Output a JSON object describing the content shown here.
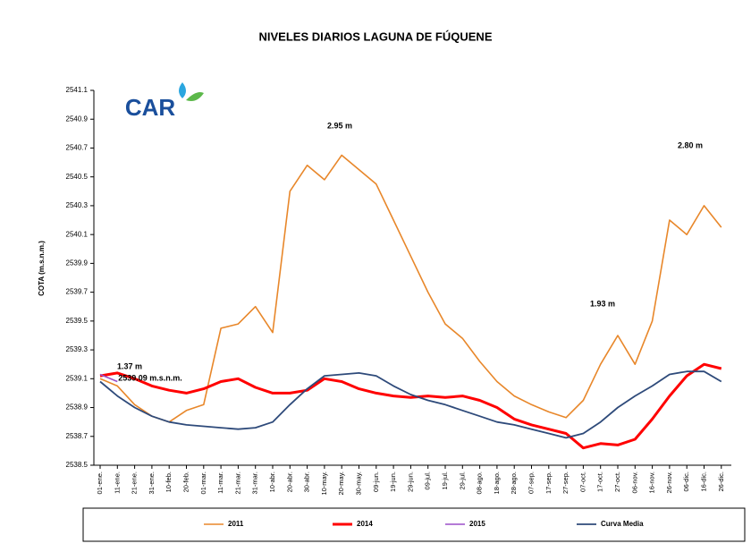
{
  "chart_data": {
    "type": "line",
    "title": "NIVELES DIARIOS LAGUNA DE FÚQUENE",
    "ylabel": "COTA (m.s.n.m.)",
    "logo": "CAR",
    "annotations": [
      "2.95 m",
      "2.80 m",
      "1.93 m",
      "1.37 m",
      "2539.09 m.s.n.m."
    ],
    "categories": [
      "01-ene.",
      "11-ene.",
      "21-ene.",
      "31-ene.",
      "10-feb.",
      "20-feb.",
      "01-mar.",
      "11-mar.",
      "21-mar.",
      "31-mar.",
      "10-abr.",
      "20-abr.",
      "30-abr.",
      "10-may.",
      "20-may.",
      "30-may.",
      "09-jun.",
      "19-jun.",
      "29-jun.",
      "09-jul.",
      "19-jul.",
      "29-jul.",
      "08-ago.",
      "18-ago.",
      "28-ago.",
      "07-sep.",
      "17-sep.",
      "27-sep.",
      "07-oct.",
      "17-oct.",
      "27-oct.",
      "06-nov.",
      "16-nov.",
      "26-nov.",
      "06-dic.",
      "16-dic.",
      "26-dic."
    ],
    "series": [
      {
        "name": "2011",
        "color": "#e8872a",
        "values": [
          2539.1,
          2539.05,
          2538.92,
          2538.84,
          2538.8,
          2538.88,
          2538.92,
          2539.45,
          2539.48,
          2539.6,
          2539.42,
          2540.4,
          2540.58,
          2540.48,
          2540.65,
          2540.55,
          2540.45,
          2540.2,
          2539.95,
          2539.7,
          2539.48,
          2539.38,
          2539.22,
          2539.08,
          2538.98,
          2538.92,
          2538.87,
          2538.83,
          2538.95,
          2539.2,
          2539.4,
          2539.2,
          2539.5,
          2540.2,
          2540.1,
          2540.3,
          2540.15
        ]
      },
      {
        "name": "2014",
        "color": "#ff0000",
        "values": [
          2539.12,
          2539.14,
          2539.1,
          2539.05,
          2539.02,
          2539.0,
          2539.03,
          2539.08,
          2539.1,
          2539.04,
          2539.0,
          2539.0,
          2539.02,
          2539.1,
          2539.08,
          2539.03,
          2539.0,
          2538.98,
          2538.97,
          2538.98,
          2538.97,
          2538.98,
          2538.95,
          2538.9,
          2538.82,
          2538.78,
          2538.75,
          2538.72,
          2538.62,
          2538.65,
          2538.64,
          2538.68,
          2538.82,
          2538.98,
          2539.12,
          2539.2,
          2539.17
        ]
      },
      {
        "name": "2015",
        "color": "#9b4fc8",
        "values": [
          2539.13,
          2539.08,
          null,
          null,
          null,
          null,
          null,
          null,
          null,
          null,
          null,
          null,
          null,
          null,
          null,
          null,
          null,
          null,
          null,
          null,
          null,
          null,
          null,
          null,
          null,
          null,
          null,
          null,
          null,
          null,
          null,
          null,
          null,
          null,
          null,
          null,
          null
        ]
      },
      {
        "name": "Curva Media",
        "color": "#2e4a7a",
        "values": [
          2539.08,
          2538.98,
          2538.9,
          2538.84,
          2538.8,
          2538.78,
          2538.77,
          2538.76,
          2538.75,
          2538.76,
          2538.8,
          2538.92,
          2539.03,
          2539.12,
          2539.13,
          2539.14,
          2539.12,
          2539.05,
          2538.99,
          2538.95,
          2538.92,
          2538.88,
          2538.84,
          2538.8,
          2538.78,
          2538.75,
          2538.72,
          2538.69,
          2538.72,
          2538.8,
          2538.9,
          2538.98,
          2539.05,
          2539.13,
          2539.15,
          2539.15,
          2539.08
        ]
      }
    ],
    "ylim": [
      2538.5,
      2541.1
    ],
    "yticks": [
      2538.5,
      2538.7,
      2538.9,
      2539.1,
      2539.3,
      2539.5,
      2539.7,
      2539.9,
      2540.1,
      2540.3,
      2540.5,
      2540.7,
      2540.9,
      2541.1
    ],
    "grid": false
  }
}
